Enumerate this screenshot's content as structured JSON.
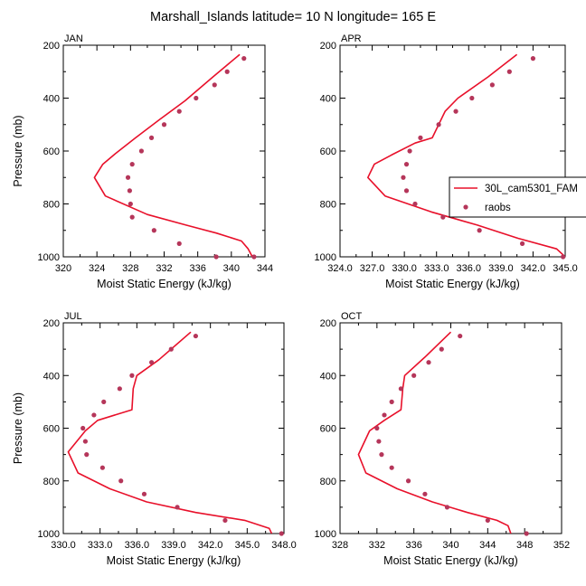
{
  "figure": {
    "title": "Marshall_Islands  latitude= 10 N longitude= 165 E"
  },
  "legend": {
    "model_label": "30L_cam5301_FAM",
    "obs_label": "raobs"
  },
  "colors": {
    "model": "#e8102a",
    "obs": "#b5365a",
    "axis": "#000000",
    "background": "#ffffff"
  },
  "chart_data": [
    {
      "type": "line",
      "panel_label": "JAN",
      "xlabel": "Moist Static Energy (kJ/kg)",
      "ylabel": "Pressure (mb)",
      "xlim": [
        320,
        344
      ],
      "ylim": [
        200,
        1000
      ],
      "y_axis_reversed": true,
      "x_ticks": [
        320,
        324,
        328,
        332,
        336,
        340,
        344
      ],
      "x_tick_labels": [
        "320",
        "324",
        "328",
        "332",
        "336",
        "340",
        "344"
      ],
      "y_ticks": [
        200,
        400,
        600,
        800,
        1000
      ],
      "y_tick_labels": [
        "200",
        "400",
        "600",
        "800",
        "1000"
      ],
      "series": [
        {
          "name": "30L_cam5301_FAM",
          "x": [
            341.0,
            337.8,
            334.5,
            331.5,
            328.6,
            326.2,
            324.7,
            323.7,
            325.0,
            330.0,
            334.6,
            338.2,
            341.2,
            342.0,
            342.5
          ],
          "y": [
            235,
            320,
            410,
            480,
            550,
            610,
            650,
            700,
            770,
            840,
            880,
            910,
            940,
            970,
            1000
          ]
        },
        {
          "name": "raobs",
          "x": [
            341.5,
            339.5,
            338.0,
            335.8,
            333.8,
            332.0,
            330.5,
            329.3,
            328.2,
            327.7,
            327.9,
            328.0,
            328.2,
            330.8,
            333.8,
            338.2,
            342.7
          ],
          "y": [
            250,
            300,
            350,
            400,
            450,
            500,
            550,
            600,
            650,
            700,
            750,
            800,
            850,
            900,
            950,
            1000,
            1000
          ]
        }
      ]
    },
    {
      "type": "line",
      "panel_label": "APR",
      "xlabel": "Moist Static Energy (kJ/kg)",
      "ylabel": "",
      "xlim": [
        324,
        345
      ],
      "ylim": [
        200,
        1000
      ],
      "y_axis_reversed": true,
      "x_ticks": [
        324,
        327,
        330,
        333,
        336,
        339,
        342,
        345
      ],
      "x_tick_labels": [
        "324.0",
        "327.0",
        "330.0",
        "333.0",
        "336.0",
        "339.0",
        "342.0",
        "345.0"
      ],
      "y_ticks": [
        200,
        400,
        600,
        800,
        1000
      ],
      "y_tick_labels": [
        "200",
        "400",
        "600",
        "800",
        "1000"
      ],
      "series": [
        {
          "name": "30L_cam5301_FAM",
          "x": [
            340.5,
            337.8,
            335.0,
            333.8,
            332.6,
            331.0,
            328.8,
            327.2,
            326.6,
            328.2,
            332.5,
            336.8,
            340.6,
            344.2,
            345.0
          ],
          "y": [
            235,
            320,
            400,
            450,
            550,
            570,
            615,
            650,
            700,
            770,
            830,
            880,
            930,
            970,
            1000
          ]
        },
        {
          "name": "raobs",
          "x": [
            342.0,
            339.8,
            338.2,
            336.3,
            334.8,
            333.2,
            331.5,
            330.5,
            330.2,
            329.9,
            330.2,
            331.0,
            333.6,
            337.0,
            341.0,
            344.8
          ],
          "y": [
            250,
            300,
            350,
            400,
            450,
            500,
            550,
            600,
            650,
            700,
            750,
            800,
            850,
            900,
            950,
            1000
          ]
        }
      ]
    },
    {
      "type": "line",
      "panel_label": "JUL",
      "xlabel": "Moist Static Energy (kJ/kg)",
      "ylabel": "Pressure (mb)",
      "xlim": [
        330,
        348
      ],
      "ylim": [
        200,
        1000
      ],
      "y_axis_reversed": true,
      "x_ticks": [
        330,
        333,
        336,
        339,
        342,
        345,
        348
      ],
      "x_tick_labels": [
        "330.0",
        "333.0",
        "336.0",
        "339.0",
        "342.0",
        "345.0",
        "348.0"
      ],
      "y_ticks": [
        200,
        400,
        600,
        800,
        1000
      ],
      "y_tick_labels": [
        "200",
        "400",
        "600",
        "800",
        "1000"
      ],
      "series": [
        {
          "name": "30L_cam5301_FAM",
          "x": [
            340.4,
            337.8,
            336.0,
            335.7,
            335.6,
            332.8,
            331.8,
            330.4,
            331.2,
            333.8,
            336.8,
            340.8,
            344.8,
            346.8,
            347.0
          ],
          "y": [
            235,
            340,
            400,
            450,
            530,
            570,
            610,
            690,
            770,
            830,
            880,
            920,
            950,
            980,
            1000
          ]
        },
        {
          "name": "raobs",
          "x": [
            340.8,
            338.8,
            337.2,
            335.6,
            334.6,
            333.3,
            332.5,
            331.6,
            331.8,
            331.9,
            333.2,
            334.7,
            336.6,
            339.3,
            343.2,
            347.8
          ],
          "y": [
            250,
            300,
            350,
            400,
            450,
            500,
            550,
            600,
            650,
            700,
            750,
            800,
            850,
            900,
            950,
            1000
          ]
        }
      ]
    },
    {
      "type": "line",
      "panel_label": "OCT",
      "xlabel": "Moist Static Energy (kJ/kg)",
      "ylabel": "",
      "xlim": [
        328,
        352
      ],
      "ylim": [
        200,
        1000
      ],
      "y_axis_reversed": true,
      "x_ticks": [
        328,
        332,
        336,
        340,
        344,
        348,
        352
      ],
      "x_tick_labels": [
        "328",
        "332",
        "336",
        "340",
        "344",
        "348",
        "352"
      ],
      "y_ticks": [
        200,
        400,
        600,
        800,
        1000
      ],
      "y_tick_labels": [
        "200",
        "400",
        "600",
        "800",
        "1000"
      ],
      "series": [
        {
          "name": "30L_cam5301_FAM",
          "x": [
            340.0,
            337.2,
            335.0,
            334.8,
            334.6,
            332.8,
            331.2,
            330.0,
            330.8,
            334.2,
            338.0,
            341.8,
            345.0,
            346.2,
            346.5
          ],
          "y": [
            235,
            330,
            400,
            450,
            530,
            570,
            610,
            700,
            770,
            830,
            880,
            920,
            950,
            970,
            1000
          ]
        },
        {
          "name": "raobs",
          "x": [
            341.0,
            339.0,
            337.6,
            336.0,
            334.6,
            333.6,
            332.8,
            332.0,
            332.2,
            332.5,
            333.6,
            335.4,
            337.2,
            339.6,
            344.0,
            348.2
          ],
          "y": [
            250,
            300,
            350,
            400,
            450,
            500,
            550,
            600,
            650,
            700,
            750,
            800,
            850,
            900,
            950,
            1000
          ]
        }
      ]
    }
  ]
}
